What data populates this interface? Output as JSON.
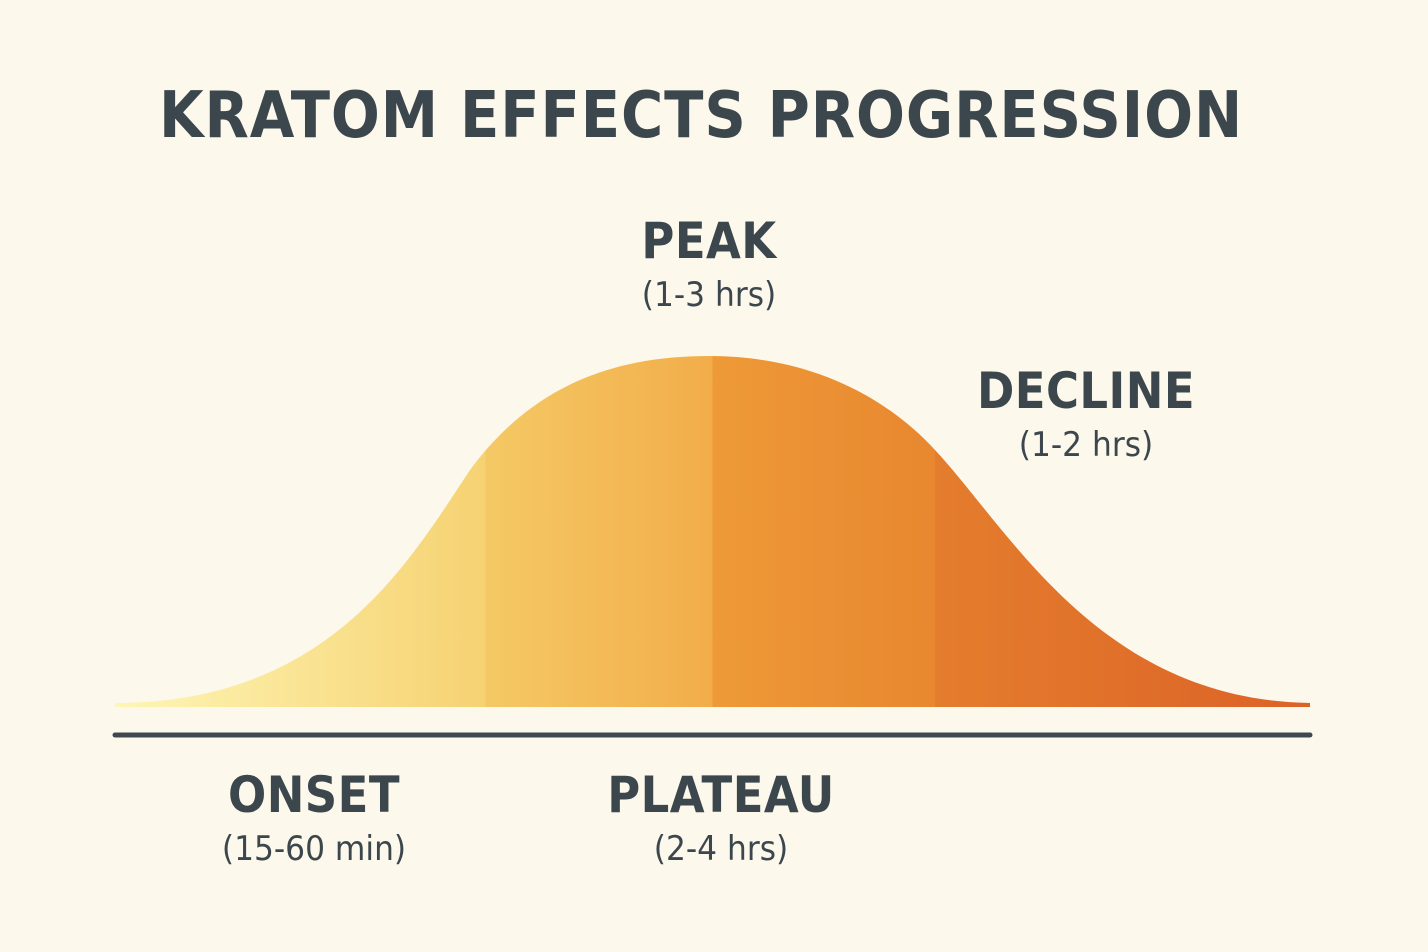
{
  "title": "KRATOM EFFECTS PROGRESSION",
  "phases": {
    "peak": {
      "name": "PEAK",
      "duration": "(1-3 hrs)"
    },
    "decline": {
      "name": "DECLINE",
      "duration": "(1-2 hrs)"
    },
    "onset": {
      "name": "ONSET",
      "duration": "(15-60 min)"
    },
    "plateau": {
      "name": "PLATEAU",
      "duration": "(2-4 hrs)"
    }
  },
  "colors": {
    "background": "#fdf8ec",
    "text": "#3c474d",
    "baseline": "#3e484e",
    "gradient_start": "#fcf3b0",
    "gradient_mid": "#f2a545",
    "gradient_end": "#dc6227"
  }
}
